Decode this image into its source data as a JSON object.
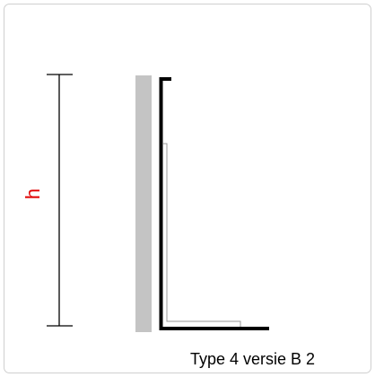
{
  "dimension": {
    "label": "h"
  },
  "caption": "Type 4 versie B 2"
}
